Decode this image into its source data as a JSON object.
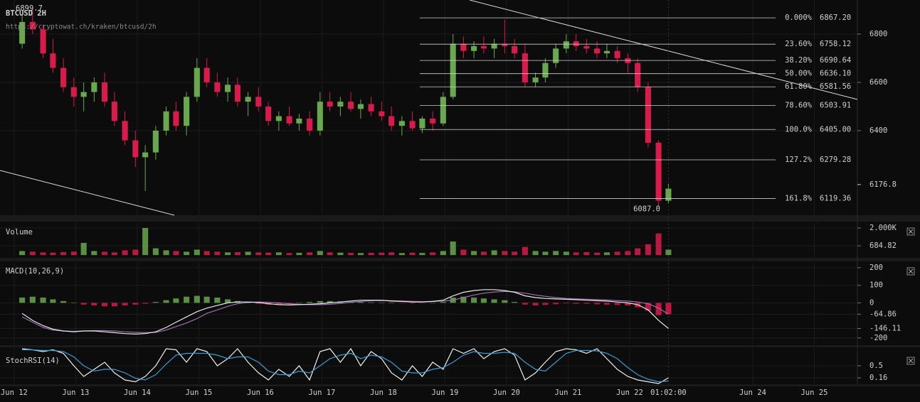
{
  "chart_data": [
    {
      "type": "candlestick",
      "title": "BTCUSD 2H",
      "subtitle": "https://cryptowat.ch/kraken/btcusd/2h",
      "xlim": [
        11.77,
        25.7
      ],
      "xticks": [
        {
          "value": 12,
          "label": "Jun 12"
        },
        {
          "value": 13,
          "label": "Jun 13"
        },
        {
          "value": 14,
          "label": "Jun 14"
        },
        {
          "value": 15,
          "label": "Jun 15"
        },
        {
          "value": 16,
          "label": "Jun 16"
        },
        {
          "value": 17,
          "label": "Jun 17"
        },
        {
          "value": 18,
          "label": "Jun 18"
        },
        {
          "value": 19,
          "label": "Jun 19"
        },
        {
          "value": 20,
          "label": "Jun 20"
        },
        {
          "value": 21,
          "label": "Jun 21"
        },
        {
          "value": 22,
          "label": "Jun 22"
        },
        {
          "value": 24,
          "label": "Jun 24"
        },
        {
          "value": 25,
          "label": "Jun 25"
        }
      ],
      "cursor": {
        "value": 22.63,
        "label": "01:02:00"
      },
      "x": [
        12.13,
        12.3,
        12.47,
        12.63,
        12.8,
        12.97,
        13.13,
        13.3,
        13.47,
        13.63,
        13.8,
        13.97,
        14.13,
        14.3,
        14.47,
        14.63,
        14.8,
        14.97,
        15.13,
        15.3,
        15.47,
        15.63,
        15.8,
        15.97,
        16.13,
        16.3,
        16.47,
        16.63,
        16.8,
        16.97,
        17.13,
        17.3,
        17.47,
        17.63,
        17.8,
        17.97,
        18.13,
        18.3,
        18.47,
        18.63,
        18.8,
        18.97,
        19.13,
        19.3,
        19.47,
        19.63,
        19.8,
        19.97,
        20.13,
        20.3,
        20.47,
        20.63,
        20.8,
        20.97,
        21.13,
        21.3,
        21.47,
        21.63,
        21.8,
        21.97,
        22.13,
        22.3,
        22.47,
        22.63
      ],
      "open": [
        6760,
        6850,
        6820,
        6720,
        6660,
        6580,
        6540,
        6560,
        6600,
        6520,
        6440,
        6360,
        6290,
        6310,
        6400,
        6480,
        6420,
        6540,
        6660,
        6600,
        6560,
        6590,
        6520,
        6540,
        6500,
        6440,
        6460,
        6430,
        6450,
        6400,
        6520,
        6500,
        6520,
        6490,
        6510,
        6480,
        6460,
        6420,
        6440,
        6410,
        6450,
        6430,
        6540,
        6760,
        6730,
        6750,
        6740,
        6760,
        6750,
        6720,
        6600,
        6620,
        6680,
        6740,
        6770,
        6750,
        6740,
        6720,
        6730,
        6700,
        6680,
        6580,
        6350,
        6110
      ],
      "high": [
        6880,
        6900,
        6840,
        6780,
        6700,
        6620,
        6600,
        6620,
        6640,
        6560,
        6480,
        6400,
        6340,
        6420,
        6500,
        6520,
        6560,
        6700,
        6700,
        6640,
        6620,
        6620,
        6560,
        6580,
        6520,
        6480,
        6500,
        6470,
        6480,
        6560,
        6560,
        6540,
        6560,
        6530,
        6540,
        6520,
        6500,
        6460,
        6480,
        6460,
        6480,
        6560,
        6800,
        6790,
        6770,
        6790,
        6780,
        6860,
        6780,
        6760,
        6640,
        6700,
        6760,
        6800,
        6800,
        6780,
        6770,
        6760,
        6750,
        6720,
        6700,
        6600,
        6360,
        6180
      ],
      "low": [
        6740,
        6800,
        6700,
        6640,
        6560,
        6500,
        6480,
        6520,
        6500,
        6420,
        6340,
        6250,
        6150,
        6280,
        6380,
        6400,
        6380,
        6520,
        6580,
        6540,
        6520,
        6500,
        6460,
        6480,
        6420,
        6400,
        6420,
        6400,
        6380,
        6380,
        6480,
        6460,
        6480,
        6450,
        6460,
        6440,
        6400,
        6380,
        6400,
        6390,
        6400,
        6420,
        6530,
        6700,
        6700,
        6720,
        6700,
        6720,
        6700,
        6580,
        6580,
        6600,
        6660,
        6720,
        6730,
        6720,
        6700,
        6700,
        6680,
        6640,
        6560,
        6330,
        6087,
        6100
      ],
      "close": [
        6850,
        6820,
        6720,
        6660,
        6580,
        6540,
        6560,
        6600,
        6520,
        6440,
        6360,
        6290,
        6310,
        6400,
        6480,
        6420,
        6540,
        6660,
        6600,
        6560,
        6590,
        6520,
        6540,
        6500,
        6440,
        6460,
        6430,
        6450,
        6400,
        6520,
        6500,
        6520,
        6490,
        6510,
        6480,
        6460,
        6420,
        6440,
        6410,
        6450,
        6430,
        6540,
        6760,
        6730,
        6750,
        6740,
        6760,
        6750,
        6720,
        6600,
        6620,
        6680,
        6740,
        6770,
        6750,
        6740,
        6720,
        6730,
        6700,
        6680,
        6580,
        6350,
        6110,
        6160
      ],
      "up_color": "#6aa84f",
      "down_color": "#d81b4a",
      "ylim": [
        6050,
        6941
      ],
      "yticks": [
        6800,
        6600,
        6400
      ],
      "last_price": 6176.8,
      "high_marker": 6899.7,
      "low_marker": {
        "value": 6087,
        "label": "6087.0"
      },
      "fib_levels": [
        {
          "name": "0.000%",
          "value": 6867.2,
          "label": "6867.20"
        },
        {
          "name": "23.60%",
          "value": 6758.12,
          "label": "6758.12"
        },
        {
          "name": "38.20%",
          "value": 6690.64,
          "label": "6690.64"
        },
        {
          "name": "50.00%",
          "value": 6636.1,
          "label": "6636.10"
        },
        {
          "name": "61.80%",
          "value": 6581.56,
          "label": "6581.56"
        },
        {
          "name": "78.60%",
          "value": 6503.91,
          "label": "6503.91"
        },
        {
          "name": "100.0%",
          "value": 6405,
          "label": "6405.00"
        },
        {
          "name": "127.2%",
          "value": 6279.28,
          "label": "6279.28"
        },
        {
          "name": "161.8%",
          "value": 6119.36,
          "label": "6119.36"
        }
      ]
    },
    {
      "type": "bar",
      "title": "Volume",
      "values": [
        300,
        250,
        200,
        180,
        220,
        260,
        900,
        300,
        250,
        200,
        350,
        400,
        2000,
        500,
        350,
        300,
        250,
        400,
        300,
        250,
        200,
        220,
        250,
        200,
        180,
        200,
        150,
        170,
        200,
        300,
        200,
        180,
        160,
        150,
        170,
        180,
        200,
        150,
        180,
        160,
        200,
        300,
        1000,
        400,
        300,
        250,
        350,
        300,
        250,
        600,
        300,
        250,
        300,
        250,
        200,
        220,
        180,
        200,
        250,
        300,
        500,
        800,
        1600,
        400
      ],
      "ylim": [
        -150,
        2420
      ],
      "yticks": [
        {
          "value": 2000,
          "label": "2.000K"
        },
        684.82
      ]
    },
    {
      "type": "macd",
      "title": "MACD(10,26,9)",
      "histogram": [
        30,
        35,
        30,
        20,
        10,
        0,
        -10,
        -15,
        -20,
        -20,
        -15,
        -10,
        -5,
        5,
        15,
        25,
        35,
        40,
        35,
        30,
        20,
        10,
        0,
        -5,
        -10,
        -10,
        -5,
        0,
        5,
        10,
        10,
        8,
        5,
        5,
        3,
        2,
        0,
        -2,
        -3,
        -2,
        0,
        5,
        30,
        35,
        30,
        25,
        20,
        15,
        5,
        -10,
        -15,
        -12,
        -8,
        -3,
        -5,
        -5,
        -8,
        -10,
        -12,
        -15,
        -25,
        -45,
        -70,
        -65
      ],
      "macd": [
        -60,
        -100,
        -130,
        -150,
        -160,
        -165,
        -160,
        -160,
        -165,
        -170,
        -175,
        -178,
        -175,
        -165,
        -140,
        -110,
        -80,
        -50,
        -30,
        -15,
        0,
        5,
        5,
        2,
        -5,
        -10,
        -12,
        -10,
        -8,
        -5,
        0,
        5,
        10,
        15,
        15,
        15,
        10,
        8,
        5,
        5,
        8,
        15,
        40,
        60,
        70,
        75,
        75,
        70,
        60,
        40,
        30,
        25,
        22,
        20,
        18,
        15,
        12,
        10,
        5,
        0,
        -10,
        -40,
        -100,
        -146.11
      ],
      "signal": [
        -80,
        -110,
        -140,
        -155,
        -160,
        -162,
        -160,
        -158,
        -158,
        -160,
        -165,
        -168,
        -170,
        -168,
        -155,
        -135,
        -115,
        -90,
        -60,
        -40,
        -20,
        -5,
        3,
        5,
        3,
        0,
        -5,
        -8,
        -10,
        -10,
        -8,
        -3,
        3,
        8,
        12,
        13,
        12,
        10,
        8,
        7,
        8,
        10,
        15,
        30,
        45,
        55,
        62,
        65,
        63,
        55,
        45,
        37,
        30,
        25,
        22,
        20,
        18,
        16,
        13,
        10,
        5,
        -5,
        -30,
        -64.86
      ],
      "macd_color": "#e8e8e8",
      "signal_color": "#9b6fb0",
      "up_color": "#6aa84f",
      "down_color": "#d81b4a",
      "ylim": [
        -237,
        228
      ],
      "yticks": [
        200,
        100,
        0,
        -64.86,
        -146.11,
        -200
      ]
    },
    {
      "type": "line",
      "title": "StochRSI(14)",
      "series": [
        {
          "color": "#f0f0f0",
          "values": [
            0.98,
            0.95,
            0.9,
            0.95,
            0.85,
            0.5,
            0.2,
            0.4,
            0.6,
            0.3,
            0.1,
            0.05,
            0.2,
            0.5,
            0.98,
            0.95,
            0.6,
            0.98,
            0.9,
            0.5,
            0.7,
            0.98,
            0.6,
            0.3,
            0.1,
            0.4,
            0.2,
            0.5,
            0.1,
            0.9,
            0.98,
            0.6,
            0.98,
            0.5,
            0.9,
            0.7,
            0.3,
            0.1,
            0.5,
            0.2,
            0.6,
            0.4,
            0.98,
            0.85,
            0.98,
            0.7,
            0.9,
            0.98,
            0.8,
            0.1,
            0.3,
            0.6,
            0.9,
            0.98,
            0.95,
            0.85,
            0.98,
            0.7,
            0.4,
            0.2,
            0.1,
            0.05,
            0,
            0.16
          ]
        },
        {
          "color": "#3a9bd1",
          "values": [
            0.95,
            0.95,
            0.93,
            0.93,
            0.9,
            0.75,
            0.5,
            0.35,
            0.4,
            0.4,
            0.3,
            0.15,
            0.1,
            0.25,
            0.55,
            0.8,
            0.85,
            0.85,
            0.85,
            0.8,
            0.7,
            0.75,
            0.75,
            0.6,
            0.35,
            0.25,
            0.25,
            0.35,
            0.3,
            0.5,
            0.7,
            0.8,
            0.85,
            0.7,
            0.8,
            0.75,
            0.6,
            0.35,
            0.3,
            0.3,
            0.4,
            0.45,
            0.6,
            0.8,
            0.9,
            0.85,
            0.85,
            0.88,
            0.85,
            0.6,
            0.4,
            0.35,
            0.6,
            0.85,
            0.93,
            0.93,
            0.92,
            0.85,
            0.7,
            0.45,
            0.25,
            0.12,
            0.05,
            0.07
          ]
        }
      ],
      "ylim": [
        0,
        1
      ],
      "yticks": [
        0.5,
        0.16
      ]
    }
  ]
}
